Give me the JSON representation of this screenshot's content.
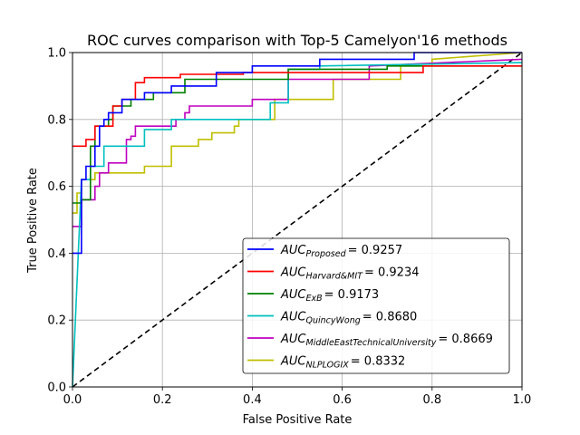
{
  "chart_data": {
    "type": "line",
    "title": "ROC curves comparison with Top-5 Camelyon'16 methods",
    "xlabel": "False Positive Rate",
    "ylabel": "True Positive Rate",
    "xlim": [
      0,
      1
    ],
    "ylim": [
      0,
      1
    ],
    "xticks": [
      "0.0",
      "0.2",
      "0.4",
      "0.6",
      "0.8",
      "1.0"
    ],
    "yticks": [
      "0.0",
      "0.2",
      "0.4",
      "0.6",
      "0.8",
      "1.0"
    ],
    "grid": true,
    "legend_position": "lower-right",
    "series": [
      {
        "name": "AUC_Proposed = 0.9257",
        "legend_prefix": "AUC",
        "legend_sub": "Proposed",
        "legend_value": "= 0.9257",
        "color": "#0000ff",
        "dash": false,
        "x": [
          0,
          0.02,
          0.02,
          0.03,
          0.03,
          0.05,
          0.05,
          0.06,
          0.06,
          0.07,
          0.07,
          0.08,
          0.08,
          0.11,
          0.11,
          0.16,
          0.16,
          0.22,
          0.22,
          0.32,
          0.32,
          0.4,
          0.4,
          0.55,
          0.55,
          0.76,
          0.76,
          1.0
        ],
        "y": [
          0.4,
          0.4,
          0.62,
          0.62,
          0.66,
          0.66,
          0.72,
          0.72,
          0.78,
          0.78,
          0.8,
          0.8,
          0.82,
          0.82,
          0.86,
          0.86,
          0.88,
          0.88,
          0.9,
          0.9,
          0.94,
          0.94,
          0.96,
          0.96,
          0.98,
          0.98,
          1.0,
          1.0
        ]
      },
      {
        "name": "AUC_Harvard&MIT = 0.9234",
        "legend_prefix": "AUC",
        "legend_sub": "Harvard&MIT",
        "legend_value": "= 0.9234",
        "color": "#ff0000",
        "dash": false,
        "x": [
          0,
          0.03,
          0.03,
          0.05,
          0.05,
          0.09,
          0.09,
          0.11,
          0.11,
          0.14,
          0.14,
          0.16,
          0.16,
          0.24,
          0.24,
          0.38,
          0.38,
          0.78,
          0.78,
          1.0
        ],
        "y": [
          0.72,
          0.72,
          0.74,
          0.74,
          0.78,
          0.78,
          0.84,
          0.84,
          0.86,
          0.86,
          0.91,
          0.91,
          0.925,
          0.925,
          0.935,
          0.935,
          0.94,
          0.94,
          0.96,
          0.96
        ]
      },
      {
        "name": "AUC_ExB = 0.9173",
        "legend_prefix": "AUC",
        "legend_sub": "ExB",
        "legend_value": "= 0.9173",
        "color": "#008000",
        "dash": false,
        "x": [
          0,
          0.02,
          0.02,
          0.04,
          0.04,
          0.05,
          0.05,
          0.08,
          0.08,
          0.09,
          0.09,
          0.13,
          0.13,
          0.18,
          0.18,
          0.25,
          0.25,
          0.48,
          0.48,
          0.7,
          0.7,
          1.0
        ],
        "y": [
          0.55,
          0.55,
          0.56,
          0.56,
          0.72,
          0.72,
          0.78,
          0.78,
          0.8,
          0.8,
          0.84,
          0.84,
          0.86,
          0.86,
          0.88,
          0.88,
          0.92,
          0.92,
          0.95,
          0.95,
          0.96,
          0.96
        ]
      },
      {
        "name": "AUC_QuincyWong = 0.8680",
        "legend_prefix": "AUC",
        "legend_sub": "QuincyWong",
        "legend_value": "= 0.8680",
        "color": "#00bfbf",
        "dash": false,
        "x": [
          0,
          0.02,
          0.02,
          0.04,
          0.04,
          0.07,
          0.07,
          0.11,
          0.11,
          0.16,
          0.16,
          0.22,
          0.22,
          0.44,
          0.44,
          0.48,
          0.48,
          0.55,
          0.55,
          1.0
        ],
        "y": [
          0.0,
          0.62,
          0.62,
          0.62,
          0.66,
          0.66,
          0.72,
          0.72,
          0.72,
          0.72,
          0.77,
          0.77,
          0.8,
          0.8,
          0.85,
          0.85,
          0.95,
          0.95,
          0.96,
          0.97
        ]
      },
      {
        "name": "AUC_MiddleEastTechnicalUniversity = 0.8669",
        "legend_prefix": "AUC",
        "legend_sub": "MiddleEastTechnicalUniversity",
        "legend_value": "= 0.8669",
        "color": "#bf00bf",
        "dash": false,
        "x": [
          0,
          0.02,
          0.02,
          0.05,
          0.05,
          0.06,
          0.06,
          0.08,
          0.08,
          0.12,
          0.12,
          0.13,
          0.13,
          0.14,
          0.14,
          0.23,
          0.23,
          0.25,
          0.25,
          0.26,
          0.26,
          0.4,
          0.4,
          0.48,
          0.48,
          0.66,
          0.66,
          1.0
        ],
        "y": [
          0.48,
          0.48,
          0.56,
          0.56,
          0.6,
          0.6,
          0.64,
          0.64,
          0.67,
          0.67,
          0.74,
          0.74,
          0.75,
          0.75,
          0.78,
          0.78,
          0.8,
          0.8,
          0.82,
          0.82,
          0.84,
          0.84,
          0.86,
          0.86,
          0.92,
          0.92,
          0.96,
          0.98
        ]
      },
      {
        "name": "AUC_NLPLOGIX = 0.8332",
        "legend_prefix": "AUC",
        "legend_sub": "NLPLOGIX",
        "legend_value": "= 0.8332",
        "color": "#bfbf00",
        "dash": false,
        "x": [
          0,
          0.01,
          0.01,
          0.02,
          0.02,
          0.05,
          0.05,
          0.11,
          0.11,
          0.16,
          0.16,
          0.22,
          0.22,
          0.28,
          0.28,
          0.31,
          0.31,
          0.36,
          0.36,
          0.37,
          0.37,
          0.45,
          0.45,
          0.58,
          0.58,
          0.73,
          0.73,
          0.8,
          0.8,
          1.0
        ],
        "y": [
          0.52,
          0.52,
          0.58,
          0.58,
          0.62,
          0.62,
          0.64,
          0.64,
          0.64,
          0.64,
          0.66,
          0.66,
          0.72,
          0.72,
          0.74,
          0.74,
          0.76,
          0.76,
          0.78,
          0.78,
          0.8,
          0.8,
          0.86,
          0.86,
          0.92,
          0.92,
          0.96,
          0.96,
          0.98,
          1.0
        ]
      },
      {
        "name": "chance",
        "legend_prefix": "",
        "legend_sub": "",
        "legend_value": "",
        "color": "#000000",
        "dash": true,
        "x": [
          0,
          1
        ],
        "y": [
          0,
          1
        ]
      }
    ]
  }
}
